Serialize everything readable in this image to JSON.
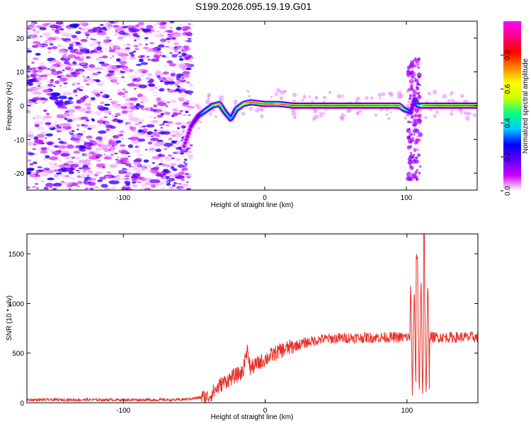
{
  "title": "S199.2026.095.19.19.G01",
  "chart_data": [
    {
      "type": "heatmap",
      "xlabel": "Height of straight line (km)",
      "ylabel": "Frequency (Hz)",
      "xlim": [
        -168,
        150
      ],
      "ylim": [
        -25,
        25
      ],
      "xticks": [
        -100,
        0,
        100
      ],
      "yticks": [
        -20,
        -10,
        0,
        10,
        20
      ],
      "colorbar": {
        "label": "Normalized spectral amplitude",
        "range": [
          0,
          1
        ],
        "ticks": [
          "0.0",
          "0.2",
          "0.4",
          "0.6",
          "0.8"
        ],
        "tick_values": [
          0.0,
          0.2,
          0.4,
          0.6,
          0.8
        ],
        "colors": [
          "#ffffff",
          "#cc00ff",
          "#6000ff",
          "#0000ff",
          "#00c8ff",
          "#00ff80",
          "#c8ff00",
          "#ffff00",
          "#ff8000",
          "#ff0000",
          "#ff0080",
          "#ff00ff"
        ]
      },
      "ridge": {
        "x": [
          -57,
          -52,
          -47,
          -42,
          -37,
          -32,
          -28,
          -24,
          -20,
          -15,
          -10,
          0,
          10,
          20,
          40,
          60,
          80,
          95,
          98,
          103,
          106,
          108,
          112,
          120,
          135,
          150
        ],
        "y": [
          -12,
          -6,
          -3,
          -1.5,
          0,
          0.5,
          -2,
          -4,
          -1,
          0.5,
          1,
          0.5,
          0.5,
          0,
          0,
          0,
          0,
          0,
          -1,
          -2,
          2,
          0,
          0,
          0,
          0,
          0
        ],
        "amplitude": [
          0.15,
          0.2,
          0.3,
          0.5,
          0.6,
          0.7,
          0.55,
          0.45,
          0.6,
          0.7,
          0.8,
          0.85,
          0.75,
          0.9,
          0.9,
          0.9,
          0.85,
          0.8,
          0.6,
          0.3,
          0.3,
          0.5,
          0.8,
          0.9,
          0.9,
          0.9
        ]
      },
      "noise_region_x": [
        -168,
        -52
      ],
      "spike_x": [
        103,
        108
      ]
    },
    {
      "type": "line",
      "xlabel": "Height of straight line (km)",
      "ylabel": "SNR (10 * v/v)",
      "xlim": [
        -168,
        150
      ],
      "ylim": [
        0,
        1700
      ],
      "xticks": [
        -100,
        0,
        100
      ],
      "yticks": [
        0,
        500,
        1000,
        1500
      ],
      "color": "#e8302a",
      "trend": {
        "x": [
          -168,
          -60,
          -40,
          -30,
          -20,
          -10,
          0,
          10,
          20,
          30,
          40,
          60,
          100,
          150
        ],
        "y": [
          30,
          30,
          60,
          200,
          280,
          350,
          440,
          520,
          570,
          610,
          640,
          655,
          660,
          660
        ]
      },
      "peaks": [
        {
          "x": -13,
          "y": 620
        },
        {
          "x": 107,
          "y": 1500
        },
        {
          "x": 112,
          "y": 1700
        }
      ]
    }
  ]
}
